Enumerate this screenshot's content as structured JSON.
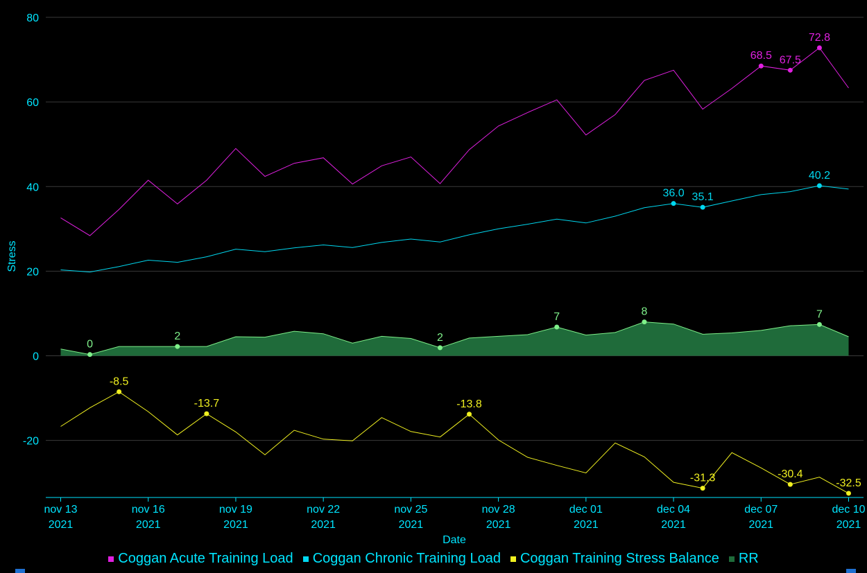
{
  "colors": {
    "axis": "#00e5ff",
    "grid": "#3a3a3a",
    "atl": "#e020e0",
    "ctl": "#00d8f0",
    "tsb": "#f0f020",
    "rr_fill": "#1f6b3a",
    "rr_line": "#7ff08a",
    "rr_label": "#7ff08a"
  },
  "chart_data": {
    "type": "line",
    "title": "",
    "xlabel": "Date",
    "ylabel": "Stress",
    "ylim": [
      -33.5,
      80
    ],
    "yticks": [
      -20,
      0,
      20,
      40,
      60,
      80
    ],
    "x": [
      "2021-11-13",
      "2021-11-14",
      "2021-11-15",
      "2021-11-16",
      "2021-11-17",
      "2021-11-18",
      "2021-11-19",
      "2021-11-20",
      "2021-11-21",
      "2021-11-22",
      "2021-11-23",
      "2021-11-24",
      "2021-11-25",
      "2021-11-26",
      "2021-11-27",
      "2021-11-28",
      "2021-11-29",
      "2021-11-30",
      "2021-12-01",
      "2021-12-02",
      "2021-12-03",
      "2021-12-04",
      "2021-12-05",
      "2021-12-06",
      "2021-12-07",
      "2021-12-08",
      "2021-12-09",
      "2021-12-10"
    ],
    "xticks": [
      {
        "date": "2021-11-13",
        "line1": "nov 13",
        "line2": "2021"
      },
      {
        "date": "2021-11-16",
        "line1": "nov 16",
        "line2": "2021"
      },
      {
        "date": "2021-11-19",
        "line1": "nov 19",
        "line2": "2021"
      },
      {
        "date": "2021-11-22",
        "line1": "nov 22",
        "line2": "2021"
      },
      {
        "date": "2021-11-25",
        "line1": "nov 25",
        "line2": "2021"
      },
      {
        "date": "2021-11-28",
        "line1": "nov 28",
        "line2": "2021"
      },
      {
        "date": "2021-12-01",
        "line1": "dec 01",
        "line2": "2021"
      },
      {
        "date": "2021-12-04",
        "line1": "dec 04",
        "line2": "2021"
      },
      {
        "date": "2021-12-07",
        "line1": "dec 07",
        "line2": "2021"
      },
      {
        "date": "2021-12-10",
        "line1": "dec 10",
        "line2": "2021"
      }
    ],
    "grid": true,
    "legend_position": "bottom",
    "series": [
      {
        "name": "Coggan Acute Training Load",
        "color_key": "atl",
        "values": [
          32.6,
          28.4,
          34.6,
          41.5,
          35.9,
          41.5,
          49.0,
          42.4,
          45.5,
          46.8,
          40.6,
          44.9,
          47.0,
          40.7,
          48.7,
          54.3,
          57.5,
          60.5,
          52.2,
          57.0,
          65.1,
          67.5,
          58.3,
          63.2,
          68.5,
          67.5,
          72.8,
          63.3
        ],
        "labels": [
          {
            "index": 24,
            "text": "68.5"
          },
          {
            "index": 25,
            "text": "67.5"
          },
          {
            "index": 26,
            "text": "72.8"
          }
        ]
      },
      {
        "name": "Coggan Chronic Training Load",
        "color_key": "ctl",
        "values": [
          20.3,
          19.8,
          21.1,
          22.6,
          22.1,
          23.4,
          25.2,
          24.6,
          25.5,
          26.2,
          25.6,
          26.8,
          27.6,
          26.9,
          28.6,
          30.0,
          31.1,
          32.3,
          31.4,
          33.0,
          35.0,
          36.0,
          35.1,
          36.6,
          38.1,
          38.8,
          40.2,
          39.4
        ],
        "labels": [
          {
            "index": 21,
            "text": "36.0"
          },
          {
            "index": 22,
            "text": "35.1"
          },
          {
            "index": 26,
            "text": "40.2"
          }
        ]
      },
      {
        "name": "Coggan Training Stress Balance",
        "color_key": "tsb",
        "values": [
          -16.7,
          -12.3,
          -8.5,
          -13.2,
          -18.7,
          -13.7,
          -18.0,
          -23.4,
          -17.6,
          -19.7,
          -20.1,
          -14.6,
          -17.9,
          -19.2,
          -13.8,
          -19.9,
          -24.0,
          -25.9,
          -27.7,
          -20.6,
          -23.9,
          -29.9,
          -31.3,
          -22.9,
          -26.5,
          -30.4,
          -28.7,
          -32.5
        ],
        "labels": [
          {
            "index": 2,
            "text": "-8.5"
          },
          {
            "index": 5,
            "text": "-13.7"
          },
          {
            "index": 14,
            "text": "-13.8"
          },
          {
            "index": 22,
            "text": "-31.3"
          },
          {
            "index": 25,
            "text": "-30.4"
          },
          {
            "index": 27,
            "text": "-32.5"
          }
        ]
      },
      {
        "name": "RR",
        "color_key": "rr_fill",
        "type": "area",
        "values": [
          1.6,
          0.3,
          2.2,
          2.2,
          2.2,
          2.2,
          4.5,
          4.4,
          5.8,
          5.2,
          3.0,
          4.6,
          4.1,
          1.9,
          4.2,
          4.6,
          5.0,
          6.8,
          4.9,
          5.5,
          8.0,
          7.5,
          5.1,
          5.4,
          6.0,
          7.1,
          7.4,
          4.5
        ],
        "labels": [
          {
            "index": 1,
            "text": "0"
          },
          {
            "index": 4,
            "text": "2"
          },
          {
            "index": 13,
            "text": "2"
          },
          {
            "index": 17,
            "text": "7"
          },
          {
            "index": 20,
            "text": "8"
          },
          {
            "index": 26,
            "text": "7"
          }
        ]
      }
    ]
  },
  "legend": {
    "items": [
      {
        "label": "Coggan Acute Training Load",
        "color_key": "atl"
      },
      {
        "label": "Coggan Chronic Training Load",
        "color_key": "ctl"
      },
      {
        "label": "Coggan Training Stress Balance",
        "color_key": "tsb"
      },
      {
        "label": "RR",
        "color_key": "rr_fill"
      }
    ]
  }
}
